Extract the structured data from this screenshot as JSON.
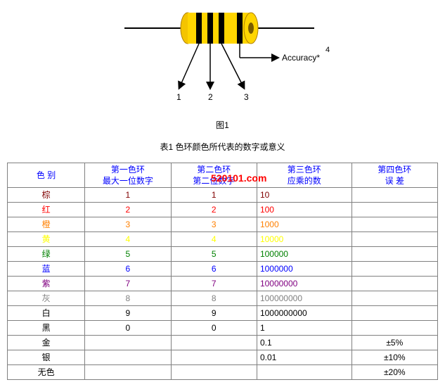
{
  "diagram": {
    "accuracy_label": "Accuracy*",
    "accuracy_exp": "4",
    "band_labels": [
      "1",
      "2",
      "3"
    ],
    "fig_caption": "图1",
    "resistor_body_color": "#ffd500",
    "resistor_end_color": "#f4c400",
    "band_color": "#000000",
    "lead_color": "#000000",
    "arrow_color": "#000000"
  },
  "table_title": "表1 色环颜色所代表的数字或意义",
  "watermark": "520101.com",
  "headers": {
    "color": "色 别",
    "d1_a": "第一色环",
    "d1_b": "最大一位数字",
    "d2_a": "第二色环",
    "d2_b": "第二位数字",
    "mult_a": "第三色环",
    "mult_b": "应乘的数",
    "tol_a": "第四色环",
    "tol_b": "误 差"
  },
  "rows": [
    {
      "name": "棕",
      "color": "#800000",
      "d1": "1",
      "d2": "1",
      "mult": "10",
      "tol": ""
    },
    {
      "name": "红",
      "color": "#ff0000",
      "d1": "2",
      "d2": "2",
      "mult": "100",
      "tol": ""
    },
    {
      "name": "橙",
      "color": "#ff8000",
      "d1": "3",
      "d2": "3",
      "mult": "1000",
      "tol": ""
    },
    {
      "name": "黄",
      "color": "#ffff00",
      "d1": "4",
      "d2": "4",
      "mult": "10000",
      "tol": ""
    },
    {
      "name": "绿",
      "color": "#008000",
      "d1": "5",
      "d2": "5",
      "mult": "100000",
      "tol": ""
    },
    {
      "name": "蓝",
      "color": "#0000ff",
      "d1": "6",
      "d2": "6",
      "mult": "1000000",
      "tol": ""
    },
    {
      "name": "紫",
      "color": "#800080",
      "d1": "7",
      "d2": "7",
      "mult": "10000000",
      "tol": ""
    },
    {
      "name": "灰",
      "color": "#808080",
      "d1": "8",
      "d2": "8",
      "mult": "100000000",
      "tol": ""
    },
    {
      "name": "白",
      "color": "#000000",
      "d1": "9",
      "d2": "9",
      "mult": "1000000000",
      "tol": ""
    },
    {
      "name": "黑",
      "color": "#000000",
      "d1": "0",
      "d2": "0",
      "mult": "1",
      "tol": ""
    },
    {
      "name": "金",
      "color": "#000000",
      "d1": "",
      "d2": "",
      "mult": "0.1",
      "tol": "±5%"
    },
    {
      "name": "银",
      "color": "#000000",
      "d1": "",
      "d2": "",
      "mult": "0.01",
      "tol": "±10%"
    },
    {
      "name": "无色",
      "color": "#000000",
      "d1": "",
      "d2": "",
      "mult": "",
      "tol": "±20%"
    }
  ],
  "col_widths": [
    "18%",
    "20%",
    "20%",
    "22%",
    "20%"
  ]
}
